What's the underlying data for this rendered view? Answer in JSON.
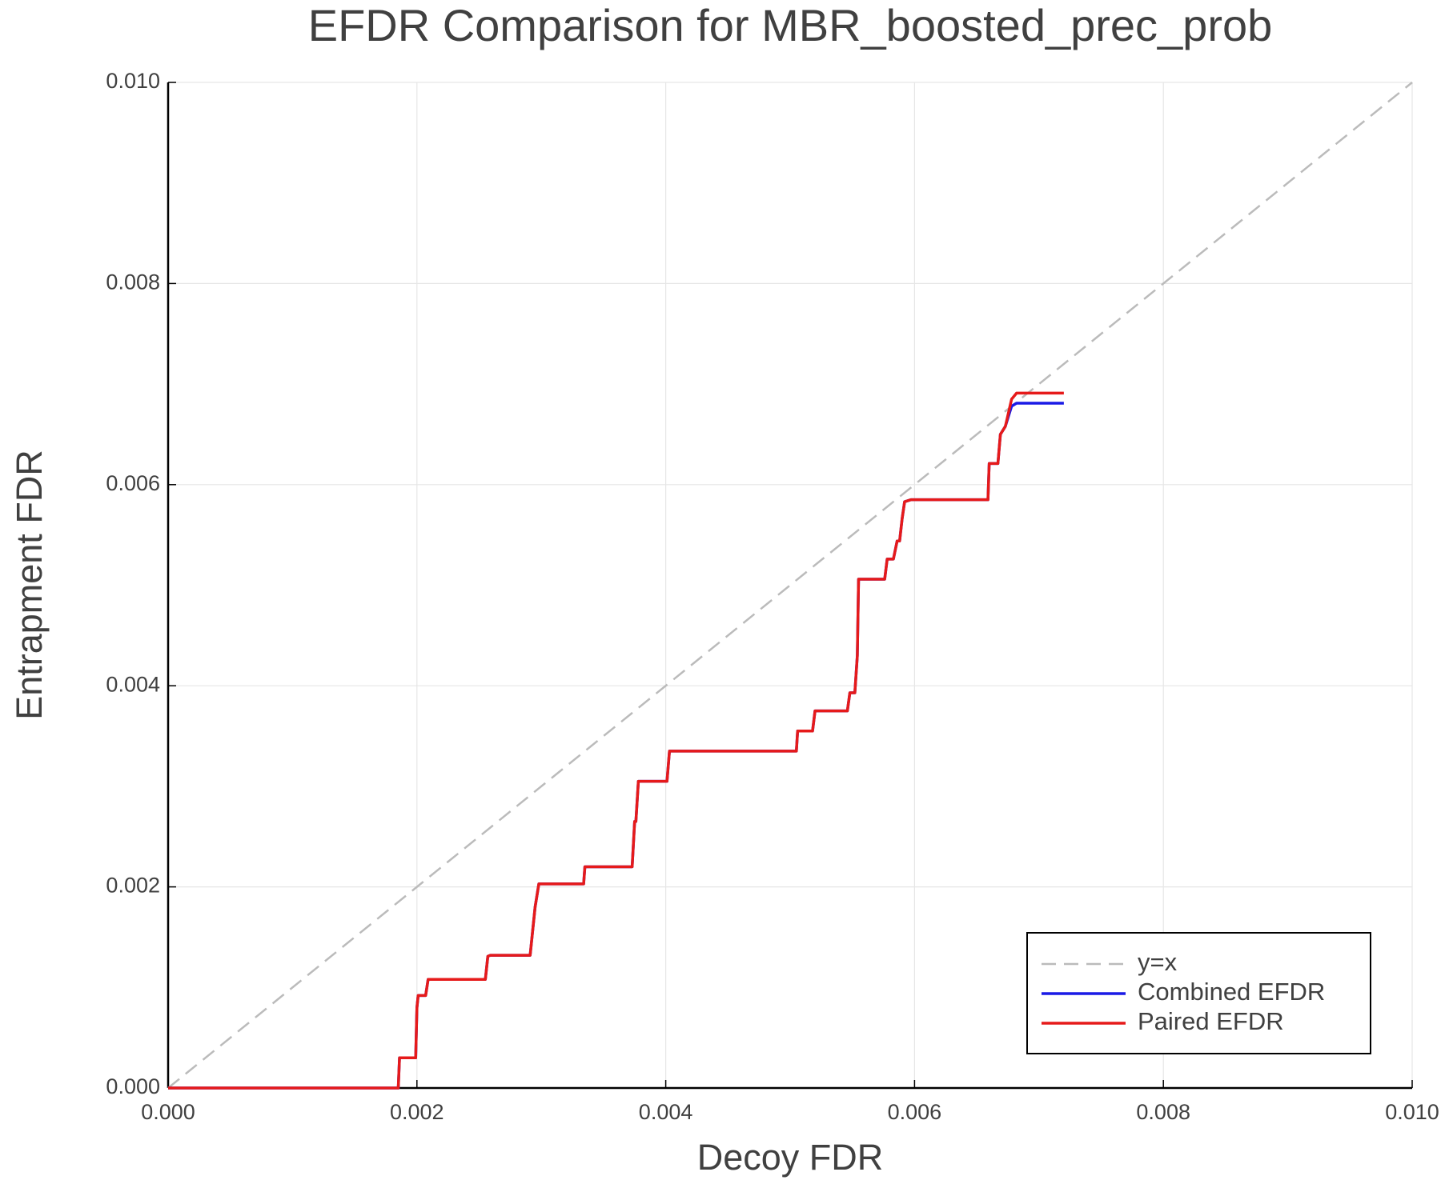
{
  "chart_data": {
    "type": "line",
    "title": "EFDR Comparison for MBR_boosted_prec_prob",
    "x_label": "Decoy FDR",
    "y_label": "Entrapment FDR",
    "xlim": [
      0,
      0.01
    ],
    "ylim": [
      0,
      0.01
    ],
    "xticks": [
      {
        "value": 0,
        "label": "0.000"
      },
      {
        "value": 0.002,
        "label": "0.002"
      },
      {
        "value": 0.004,
        "label": "0.004"
      },
      {
        "value": 0.006,
        "label": "0.006"
      },
      {
        "value": 0.008,
        "label": "0.008"
      },
      {
        "value": 0.01,
        "label": "0.010"
      }
    ],
    "yticks": [
      {
        "value": 0,
        "label": "0.000"
      },
      {
        "value": 0.002,
        "label": "0.002"
      },
      {
        "value": 0.004,
        "label": "0.004"
      },
      {
        "value": 0.006,
        "label": "0.006"
      },
      {
        "value": 0.008,
        "label": "0.008"
      },
      {
        "value": 0.01,
        "label": "0.010"
      }
    ],
    "grid": true,
    "legend": "bottom-right",
    "series": [
      {
        "name": "y=x",
        "color": "#bbbbbb",
        "dash": true,
        "x": [
          0,
          0.01
        ],
        "values": [
          0,
          0.01
        ]
      },
      {
        "name": "Combined EFDR",
        "color": "#1a1ae6",
        "dash": false,
        "x": [
          0,
          0.00185,
          0.00186,
          0.00199,
          0.002,
          0.00201,
          0.00207,
          0.00209,
          0.00255,
          0.00257,
          0.00259,
          0.00291,
          0.00295,
          0.00298,
          0.00334,
          0.00335,
          0.00373,
          0.00375,
          0.00376,
          0.00378,
          0.00401,
          0.00403,
          0.00505,
          0.00506,
          0.00518,
          0.0052,
          0.00546,
          0.00548,
          0.00552,
          0.00554,
          0.00555,
          0.00576,
          0.00578,
          0.00583,
          0.00586,
          0.00588,
          0.0059,
          0.00592,
          0.00597,
          0.00659,
          0.0066,
          0.00667,
          0.00669,
          0.00673,
          0.00678,
          0.00682,
          0.0072
        ],
        "values": [
          0,
          0,
          0.0003,
          0.0003,
          0.0008,
          0.00092,
          0.00092,
          0.00108,
          0.00108,
          0.00131,
          0.00132,
          0.00132,
          0.0018,
          0.00203,
          0.00203,
          0.0022,
          0.0022,
          0.00265,
          0.00265,
          0.00305,
          0.00305,
          0.00335,
          0.00335,
          0.00355,
          0.00355,
          0.00375,
          0.00375,
          0.00393,
          0.00393,
          0.0043,
          0.00506,
          0.00506,
          0.00526,
          0.00526,
          0.00544,
          0.00544,
          0.00566,
          0.00583,
          0.00585,
          0.00585,
          0.00621,
          0.00621,
          0.0065,
          0.00658,
          0.00678,
          0.00681,
          0.00681
        ]
      },
      {
        "name": "Paired EFDR",
        "color": "#e61a1a",
        "dash": false,
        "x": [
          0,
          0.00185,
          0.00186,
          0.00199,
          0.002,
          0.00201,
          0.00207,
          0.00209,
          0.00255,
          0.00257,
          0.00259,
          0.00291,
          0.00295,
          0.00298,
          0.00334,
          0.00335,
          0.00373,
          0.00375,
          0.00376,
          0.00378,
          0.00401,
          0.00403,
          0.00505,
          0.00506,
          0.00518,
          0.0052,
          0.00546,
          0.00548,
          0.00552,
          0.00554,
          0.00555,
          0.00576,
          0.00578,
          0.00583,
          0.00586,
          0.00588,
          0.0059,
          0.00592,
          0.00597,
          0.00659,
          0.0066,
          0.00667,
          0.00669,
          0.00673,
          0.00678,
          0.00682,
          0.0072
        ],
        "values": [
          0,
          0,
          0.0003,
          0.0003,
          0.0008,
          0.00092,
          0.00092,
          0.00108,
          0.00108,
          0.00131,
          0.00132,
          0.00132,
          0.0018,
          0.00203,
          0.00203,
          0.0022,
          0.0022,
          0.00265,
          0.00265,
          0.00305,
          0.00305,
          0.00335,
          0.00335,
          0.00355,
          0.00355,
          0.00375,
          0.00375,
          0.00393,
          0.00393,
          0.0043,
          0.00506,
          0.00506,
          0.00526,
          0.00526,
          0.00544,
          0.00544,
          0.00566,
          0.00583,
          0.00585,
          0.00585,
          0.00621,
          0.00621,
          0.0065,
          0.00658,
          0.00685,
          0.00691,
          0.00691
        ]
      }
    ]
  }
}
